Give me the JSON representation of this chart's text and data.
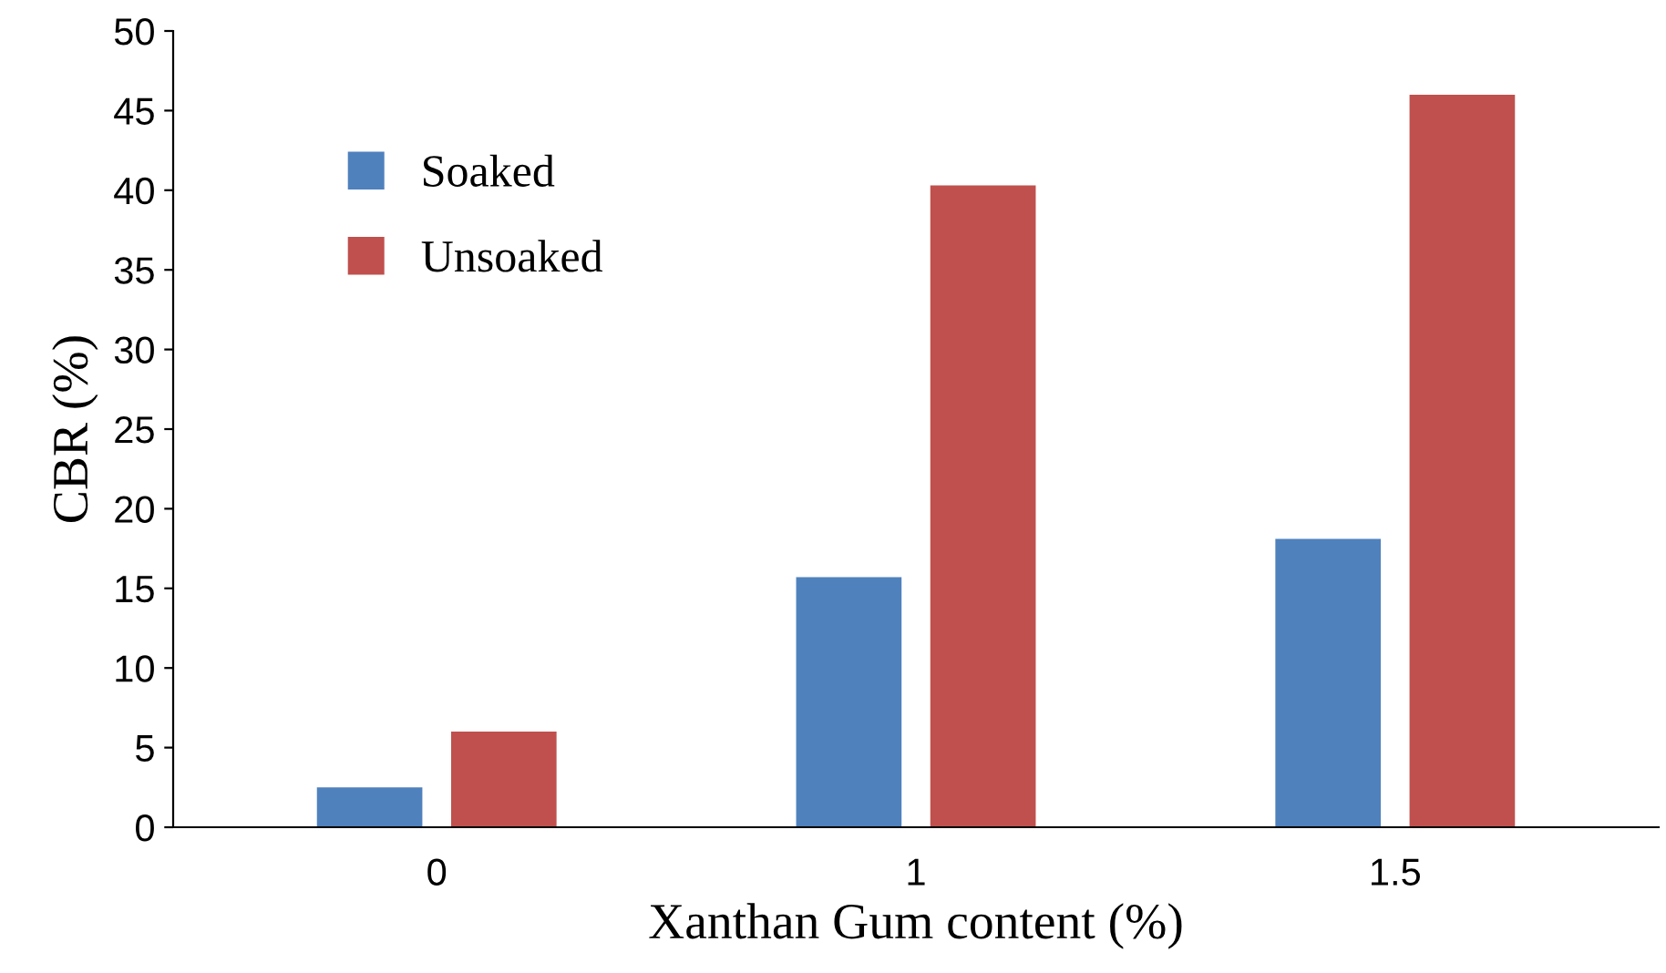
{
  "chart_data": {
    "type": "bar",
    "xlabel": "Xanthan Gum content (%)",
    "ylabel": "CBR (%)",
    "categories": [
      "0",
      "1",
      "1.5"
    ],
    "series": [
      {
        "name": "Soaked",
        "color": "#4f81bd",
        "values": [
          2.5,
          15.7,
          18.1
        ]
      },
      {
        "name": "Unsoaked",
        "color": "#c0504d",
        "values": [
          6.0,
          40.3,
          46.0
        ]
      }
    ],
    "ylim": [
      0,
      50
    ],
    "yticks": [
      0,
      5,
      10,
      15,
      20,
      25,
      30,
      35,
      40,
      45,
      50
    ],
    "grid": false,
    "legend": "top left"
  }
}
